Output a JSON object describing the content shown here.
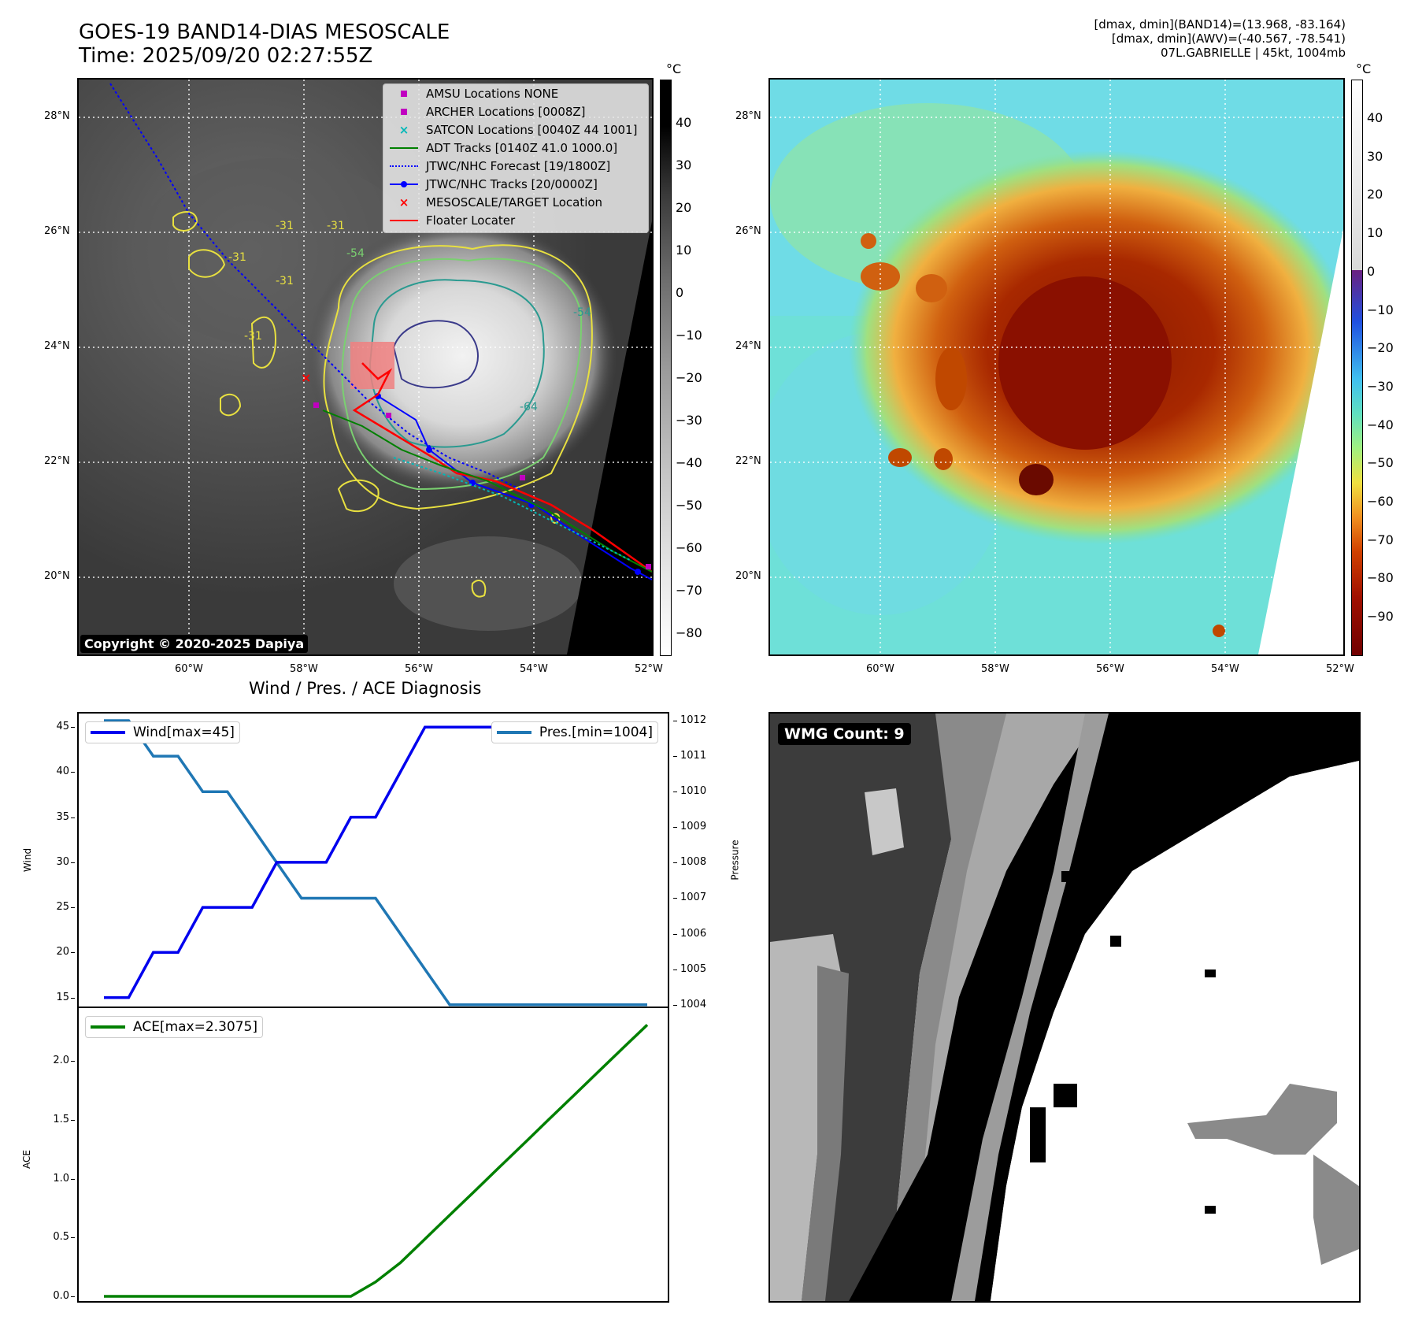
{
  "header": {
    "title_line1": "GOES-19 BAND14-DIAS MESOSCALE",
    "title_line2": "Time: 2025/09/20 02:27:55Z",
    "info_line1": "[dmax, dmin](BAND14)=(13.968, -83.164)",
    "info_line2": "[dmax, dmin](AWV)=(-40.567, -78.541)",
    "info_line3": "07L.GABRIELLE | 45kt, 1004mb"
  },
  "map_axes": {
    "lat_labels": [
      "28°N",
      "26°N",
      "24°N",
      "22°N",
      "20°N"
    ],
    "lon_labels": [
      "60°W",
      "58°W",
      "56°W",
      "54°W",
      "52°W"
    ]
  },
  "colorbar_left": {
    "unit": "°C",
    "ticks": [
      "40",
      "30",
      "20",
      "10",
      "0",
      "−10",
      "−20",
      "−30",
      "−40",
      "−50",
      "−60",
      "−70",
      "−80"
    ]
  },
  "colorbar_right": {
    "unit": "°C",
    "ticks": [
      "40",
      "30",
      "20",
      "10",
      "0",
      "−10",
      "−20",
      "−30",
      "−40",
      "−50",
      "−60",
      "−70",
      "−80",
      "−90"
    ]
  },
  "legend": {
    "items": [
      {
        "label": "AMSU Locations NONE",
        "color": "#c000c0"
      },
      {
        "label": "ARCHER Locations [0008Z]",
        "color": "#c000c0"
      },
      {
        "label": "SATCON Locations [0040Z 44 1001]",
        "color": "#00b8b8"
      },
      {
        "label": "ADT Tracks [0140Z 41.0 1000.0]",
        "color": "#008000"
      },
      {
        "label": "JTWC/NHC Forecast [19/1800Z]",
        "color": "#0000ff"
      },
      {
        "label": "JTWC/NHC Tracks [20/0000Z]",
        "color": "#0000ff"
      },
      {
        "label": "MESOSCALE/TARGET Location",
        "color": "#ff0000"
      },
      {
        "label": "Floater Locater",
        "color": "#ff0000"
      }
    ]
  },
  "contour_labels": [
    "-31",
    "-31",
    "-31",
    "-31",
    "-54",
    "-64",
    "-54",
    "-31"
  ],
  "copyright": "Copyright © 2020-2025 Dapiya",
  "diagnosis": {
    "title": "Wind / Pres. / ACE Diagnosis",
    "wind_ylabel": "Wind",
    "pres_ylabel": "Pressure",
    "ace_ylabel": "ACE",
    "wind_ticks": [
      "45",
      "40",
      "35",
      "30",
      "25",
      "20",
      "15"
    ],
    "pres_ticks": [
      "1012",
      "1011",
      "1010",
      "1009",
      "1008",
      "1007",
      "1006",
      "1005",
      "1004"
    ],
    "ace_ticks": [
      "2.0",
      "1.5",
      "1.0",
      "0.5",
      "0.0"
    ]
  },
  "chart_data": {
    "type": "line",
    "title": "Wind / Pres. / ACE Diagnosis",
    "x": [
      0,
      1,
      2,
      3,
      4,
      5,
      6,
      7,
      8,
      9,
      10,
      11,
      12,
      13,
      14,
      15,
      16,
      17,
      18,
      19,
      20,
      21,
      22
    ],
    "series": [
      {
        "name": "Wind[max=45]",
        "axis": "wind",
        "color": "#0000ee",
        "values": [
          15,
          15,
          20,
          20,
          25,
          25,
          25,
          30,
          30,
          30,
          35,
          35,
          40,
          45,
          45,
          45,
          45,
          45,
          45,
          45,
          45,
          45,
          45
        ]
      },
      {
        "name": "Pres.[min=1004]",
        "axis": "pressure",
        "color": "#1f77b4",
        "values": [
          1012,
          1012,
          1011,
          1011,
          1010,
          1010,
          1009,
          1008,
          1007,
          1007,
          1007,
          1007,
          1006,
          1005,
          1004,
          1004,
          1004,
          1004,
          1004,
          1004,
          1004,
          1004,
          1004
        ]
      },
      {
        "name": "ACE[max=2.3075]",
        "axis": "ace",
        "color": "#008000",
        "values": [
          0.0,
          0.0,
          0.0,
          0.0,
          0.0,
          0.0,
          0.0,
          0.0,
          0.0,
          0.0,
          0.0,
          0.1225,
          0.285,
          0.4875,
          0.69,
          0.8925,
          1.095,
          1.2975,
          1.5,
          1.7025,
          1.905,
          2.1075,
          2.3075
        ]
      }
    ],
    "wind_ylim": [
      14,
      46.5
    ],
    "pres_ylim": [
      1003.95,
      1012.2
    ],
    "ace_ylim": [
      -0.04,
      2.45
    ]
  },
  "wmg": {
    "label": "WMG Count: 9"
  }
}
